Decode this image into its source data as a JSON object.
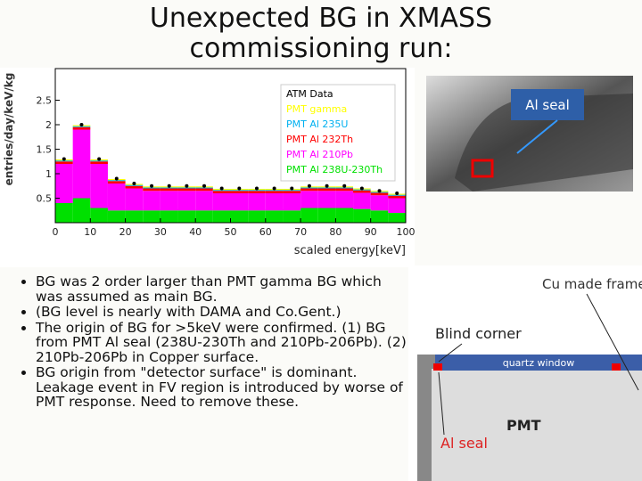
{
  "slide": {
    "title": "Unexpected BG in XMASS commissioning run:",
    "bullets": [
      "BG was 2 order larger than PMT gamma BG which was assumed as main BG.",
      "(BG level is nearly with DAMA and Co.Gent.)",
      "The origin of BG for >5keV were confirmed. (1) BG from PMT Al seal (238U-230Th and 210Pb-206Pb). (2) 210Pb-206Pb in Copper surface.",
      "BG origin from \"detector surface\" is dominant. Leakage event in FV region is introduced by worse of PMT response. Need to remove these."
    ]
  },
  "photo": {
    "label": "Al seal"
  },
  "diagram": {
    "cu_frame": "Cu made frame",
    "blind_corner": "Blind corner",
    "window": "quartz window",
    "pmt": "PMT",
    "al_seal": "Al seal"
  },
  "chart_data": {
    "type": "stacked-histogram",
    "xlabel": "scaled energy[keV]",
    "ylabel": "entries/day/keV/kg",
    "bins": [
      0,
      5,
      10,
      15,
      20,
      25,
      30,
      35,
      40,
      45,
      50,
      55,
      60,
      65,
      70,
      75,
      80,
      85,
      90,
      95,
      100
    ],
    "xlim": [
      0,
      100
    ],
    "ylim": [
      0,
      3
    ],
    "xticks": [
      0,
      10,
      20,
      30,
      40,
      50,
      60,
      70,
      80,
      90,
      100
    ],
    "yticks": [
      0.5,
      1,
      1.5,
      2,
      2.5
    ],
    "data": {
      "name": "ATM Data",
      "color": "#000000",
      "values": [
        1.3,
        2.0,
        1.3,
        0.9,
        0.8,
        0.75,
        0.75,
        0.75,
        0.75,
        0.7,
        0.7,
        0.7,
        0.7,
        0.7,
        0.75,
        0.75,
        0.75,
        0.7,
        0.65,
        0.6
      ]
    },
    "series": [
      {
        "name": "PMT Al 238U-230Th",
        "color": "#00e000",
        "values": [
          0.4,
          0.5,
          0.3,
          0.25,
          0.25,
          0.25,
          0.25,
          0.25,
          0.25,
          0.25,
          0.25,
          0.25,
          0.25,
          0.25,
          0.3,
          0.3,
          0.3,
          0.28,
          0.25,
          0.2
        ]
      },
      {
        "name": "PMT Al 210Pb",
        "color": "#ff00ff",
        "values": [
          0.8,
          1.4,
          0.9,
          0.55,
          0.45,
          0.4,
          0.4,
          0.4,
          0.4,
          0.35,
          0.35,
          0.35,
          0.35,
          0.35,
          0.35,
          0.35,
          0.35,
          0.33,
          0.31,
          0.3
        ]
      },
      {
        "name": "PMT Al 232Th",
        "color": "#ff0000",
        "values": [
          0.05,
          0.05,
          0.05,
          0.05,
          0.05,
          0.05,
          0.05,
          0.05,
          0.05,
          0.05,
          0.05,
          0.05,
          0.05,
          0.05,
          0.05,
          0.05,
          0.05,
          0.05,
          0.05,
          0.05
        ]
      },
      {
        "name": "PMT Al 235U",
        "color": "#00b0f0",
        "values": [
          0.02,
          0.02,
          0.02,
          0.02,
          0.02,
          0.02,
          0.02,
          0.02,
          0.02,
          0.02,
          0.02,
          0.02,
          0.02,
          0.02,
          0.02,
          0.02,
          0.02,
          0.02,
          0.02,
          0.02
        ]
      },
      {
        "name": "PMT gamma",
        "color": "#ffff00",
        "values": [
          0.02,
          0.02,
          0.02,
          0.02,
          0.02,
          0.02,
          0.02,
          0.02,
          0.02,
          0.02,
          0.02,
          0.02,
          0.02,
          0.02,
          0.02,
          0.02,
          0.02,
          0.02,
          0.02,
          0.02
        ]
      }
    ]
  }
}
